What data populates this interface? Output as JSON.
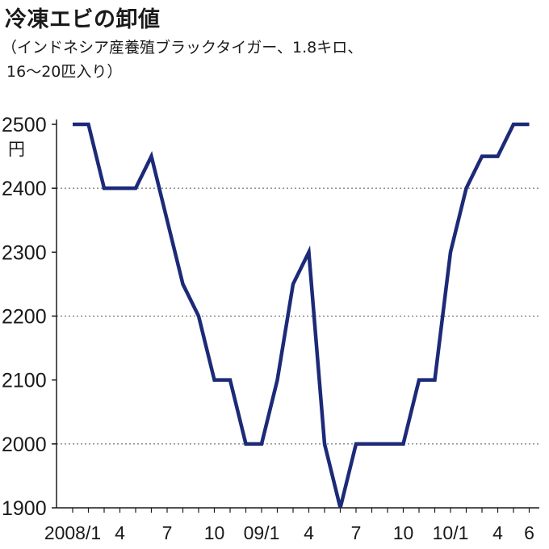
{
  "title": "冷凍エビの卸値",
  "subtitle": "（インドネシア産養殖ブラックタイガー、1.8キロ、\n 16〜20匹入り）",
  "chart_data": {
    "type": "line",
    "title": "冷凍エビの卸値",
    "subtitle": "（インドネシア産養殖ブラックタイガー、1.8キロ、16〜20匹入り）",
    "unit": "円",
    "ylim": [
      1900,
      2500
    ],
    "yticks": [
      1900,
      2000,
      2100,
      2200,
      2300,
      2400,
      2500
    ],
    "grid": "horizontal dotted at 2000, 2200, 2400",
    "x_tick_labels": [
      {
        "index": 0,
        "label": "2008/1"
      },
      {
        "index": 3,
        "label": "4"
      },
      {
        "index": 6,
        "label": "7"
      },
      {
        "index": 9,
        "label": "10"
      },
      {
        "index": 12,
        "label": "09/1"
      },
      {
        "index": 15,
        "label": "4"
      },
      {
        "index": 18,
        "label": "7"
      },
      {
        "index": 21,
        "label": "10"
      },
      {
        "index": 24,
        "label": "10/1"
      },
      {
        "index": 27,
        "label": "4"
      },
      {
        "index": 29,
        "label": "6"
      }
    ],
    "x": [
      "2008/1",
      "2008/2",
      "2008/3",
      "2008/4",
      "2008/5",
      "2008/6",
      "2008/7",
      "2008/8",
      "2008/9",
      "2008/10",
      "2008/11",
      "2008/12",
      "2009/1",
      "2009/2",
      "2009/3",
      "2009/4",
      "2009/5",
      "2009/6",
      "2009/7",
      "2009/8",
      "2009/9",
      "2009/10",
      "2009/11",
      "2009/12",
      "2010/1",
      "2010/2",
      "2010/3",
      "2010/4",
      "2010/5",
      "2010/6"
    ],
    "values": [
      2500,
      2500,
      2400,
      2400,
      2400,
      2450,
      2350,
      2250,
      2200,
      2100,
      2100,
      2000,
      2000,
      2100,
      2250,
      2300,
      2000,
      1900,
      2000,
      2000,
      2000,
      2000,
      2100,
      2100,
      2300,
      2400,
      2450,
      2450,
      2500,
      2500
    ],
    "line_color": "#1c2a78"
  }
}
